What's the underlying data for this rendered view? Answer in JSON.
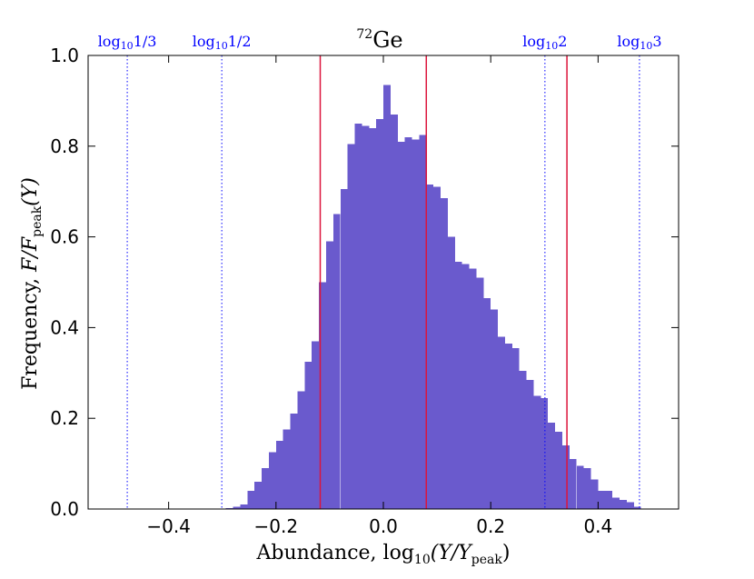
{
  "chart_data": {
    "type": "bar",
    "title_super": "72",
    "title": "Ge",
    "xlabel_prefix": "Abundance, ",
    "xlabel_math": "log",
    "xlabel_sub": "10",
    "xlabel_arg": "(Y/Y",
    "xlabel_arg_sub": "peak",
    "xlabel_close": ")",
    "ylabel_prefix": "Frequency, ",
    "ylabel_math": "F/F",
    "ylabel_sub": "peak",
    "ylabel_arg": "(Y)",
    "xlim": [
      -0.55,
      0.55
    ],
    "ylim": [
      0.0,
      1.0
    ],
    "xticks": [
      -0.4,
      -0.2,
      0.0,
      0.2,
      0.4
    ],
    "xtick_labels": [
      "−0.4",
      "−0.2",
      "0.0",
      "0.2",
      "0.4"
    ],
    "yticks": [
      0.0,
      0.2,
      0.4,
      0.6,
      0.8,
      1.0
    ],
    "ytick_labels": [
      "0.0",
      "0.2",
      "0.4",
      "0.6",
      "0.8",
      "1.0"
    ],
    "bar_color": "#6a5acd",
    "bin_width": 0.01333,
    "bins": [
      {
        "x": -0.2867,
        "y": 0.002
      },
      {
        "x": -0.2733,
        "y": 0.005
      },
      {
        "x": -0.26,
        "y": 0.01
      },
      {
        "x": -0.2467,
        "y": 0.04
      },
      {
        "x": -0.2333,
        "y": 0.06
      },
      {
        "x": -0.22,
        "y": 0.09
      },
      {
        "x": -0.2067,
        "y": 0.125
      },
      {
        "x": -0.1933,
        "y": 0.15
      },
      {
        "x": -0.18,
        "y": 0.175
      },
      {
        "x": -0.1667,
        "y": 0.21
      },
      {
        "x": -0.1533,
        "y": 0.26
      },
      {
        "x": -0.14,
        "y": 0.325
      },
      {
        "x": -0.1267,
        "y": 0.37
      },
      {
        "x": -0.1133,
        "y": 0.5
      },
      {
        "x": -0.1,
        "y": 0.59
      },
      {
        "x": -0.0867,
        "y": 0.65
      },
      {
        "x": -0.0733,
        "y": 0.705
      },
      {
        "x": -0.06,
        "y": 0.805
      },
      {
        "x": -0.0467,
        "y": 0.85
      },
      {
        "x": -0.0333,
        "y": 0.845
      },
      {
        "x": -0.02,
        "y": 0.84
      },
      {
        "x": -0.0067,
        "y": 0.86
      },
      {
        "x": 0.0067,
        "y": 0.935
      },
      {
        "x": 0.02,
        "y": 0.87
      },
      {
        "x": 0.0333,
        "y": 0.81
      },
      {
        "x": 0.0467,
        "y": 0.82
      },
      {
        "x": 0.06,
        "y": 0.815
      },
      {
        "x": 0.0733,
        "y": 0.825
      },
      {
        "x": 0.0867,
        "y": 0.715
      },
      {
        "x": 0.1,
        "y": 0.71
      },
      {
        "x": 0.1133,
        "y": 0.685
      },
      {
        "x": 0.1267,
        "y": 0.6
      },
      {
        "x": 0.14,
        "y": 0.545
      },
      {
        "x": 0.1533,
        "y": 0.54
      },
      {
        "x": 0.1667,
        "y": 0.53
      },
      {
        "x": 0.18,
        "y": 0.51
      },
      {
        "x": 0.1933,
        "y": 0.465
      },
      {
        "x": 0.2067,
        "y": 0.44
      },
      {
        "x": 0.22,
        "y": 0.38
      },
      {
        "x": 0.2333,
        "y": 0.365
      },
      {
        "x": 0.2467,
        "y": 0.355
      },
      {
        "x": 0.26,
        "y": 0.305
      },
      {
        "x": 0.2733,
        "y": 0.285
      },
      {
        "x": 0.2867,
        "y": 0.25
      },
      {
        "x": 0.3,
        "y": 0.245
      },
      {
        "x": 0.3133,
        "y": 0.19
      },
      {
        "x": 0.3267,
        "y": 0.17
      },
      {
        "x": 0.34,
        "y": 0.14
      },
      {
        "x": 0.3533,
        "y": 0.11
      },
      {
        "x": 0.3667,
        "y": 0.095
      },
      {
        "x": 0.38,
        "y": 0.09
      },
      {
        "x": 0.3933,
        "y": 0.065
      },
      {
        "x": 0.4067,
        "y": 0.04
      },
      {
        "x": 0.42,
        "y": 0.04
      },
      {
        "x": 0.4333,
        "y": 0.025
      },
      {
        "x": 0.4467,
        "y": 0.02
      },
      {
        "x": 0.46,
        "y": 0.015
      },
      {
        "x": 0.4733,
        "y": 0.005
      }
    ],
    "red_lines": [
      {
        "x": -0.1176,
        "color": "#dc143c"
      },
      {
        "x": 0.08,
        "color": "#dc143c"
      },
      {
        "x": 0.342,
        "color": "#dc143c"
      }
    ],
    "reference_lines": [
      {
        "x": -0.4771,
        "label_main": "log",
        "label_sub": "10",
        "label_arg": "1/3"
      },
      {
        "x": -0.301,
        "label_main": "log",
        "label_sub": "10",
        "label_arg": "1/2"
      },
      {
        "x": 0.301,
        "label_main": "log",
        "label_sub": "10",
        "label_arg": "2"
      },
      {
        "x": 0.4771,
        "label_main": "log",
        "label_sub": "10",
        "label_arg": "3"
      }
    ],
    "reference_color": "#0000ff"
  }
}
